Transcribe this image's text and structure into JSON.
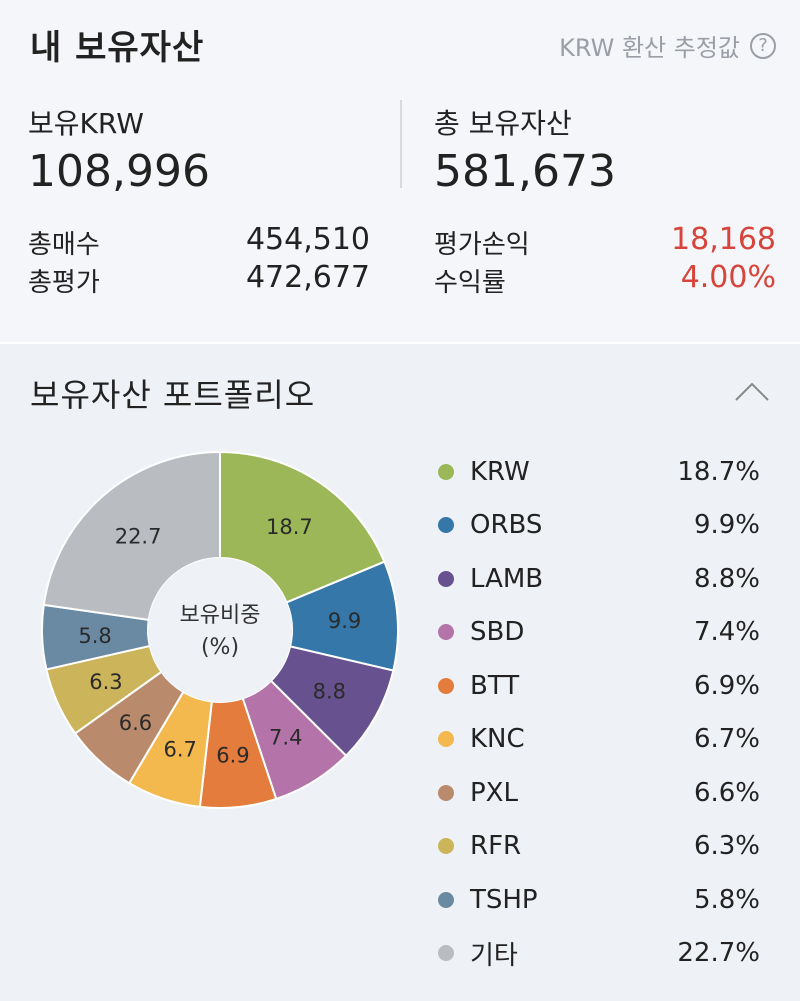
{
  "header": {
    "title": "내 보유자산",
    "note": "KRW 환산 추정값",
    "help_icon": "question-circle-icon"
  },
  "summary": {
    "krw_label": "보유KRW",
    "krw_value": "108,996",
    "total_label": "총 보유자산",
    "total_value": "581,673",
    "buy_label": "총매수",
    "buy_value": "454,510",
    "eval_label": "총평가",
    "eval_value": "472,677",
    "pnl_label": "평가손익",
    "pnl_value": "18,168",
    "rate_label": "수익률",
    "rate_value": "4.00%",
    "positive_color": "#d6443b"
  },
  "portfolio": {
    "title": "보유자산 포트폴리오",
    "collapse_icon": "chevron-up-icon",
    "center_label_1": "보유비중",
    "center_label_2": "(%)"
  },
  "chart_data": {
    "type": "pie",
    "categories": [
      "KRW",
      "ORBS",
      "LAMB",
      "SBD",
      "BTT",
      "KNC",
      "PXL",
      "RFR",
      "TSHP",
      "기타"
    ],
    "values": [
      18.7,
      9.9,
      8.8,
      7.4,
      6.9,
      6.7,
      6.6,
      6.3,
      5.8,
      22.7
    ],
    "labels": [
      "18.7",
      "9.9",
      "8.8",
      "7.4",
      "6.9",
      "6.7",
      "6.6",
      "6.3",
      "5.8",
      "22.7"
    ],
    "legend_values": [
      "18.7%",
      "9.9%",
      "8.8%",
      "7.4%",
      "6.9%",
      "6.7%",
      "6.6%",
      "6.3%",
      "5.8%",
      "22.7%"
    ],
    "colors": [
      "#9bb758",
      "#3577a8",
      "#67528f",
      "#b474a9",
      "#e37c3c",
      "#f3b84e",
      "#b98a6c",
      "#ccb45a",
      "#6a8aa3",
      "#b9bcc1"
    ],
    "donut": true
  }
}
